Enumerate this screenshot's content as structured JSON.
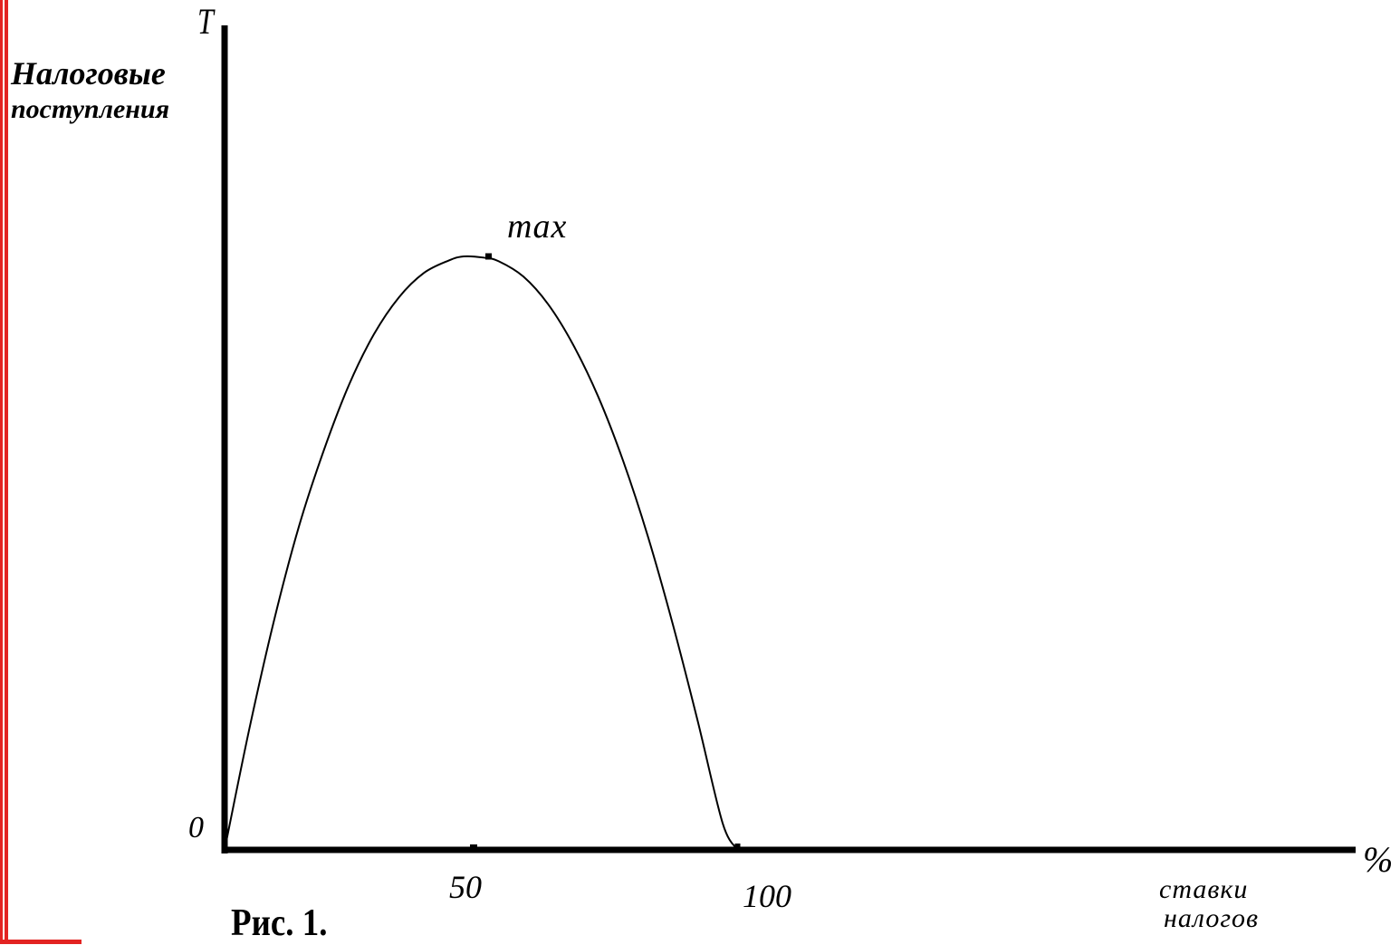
{
  "chart_data": {
    "type": "line",
    "axis_letter_y": "T",
    "ylabel": [
      "Налоговые",
      "поступления"
    ],
    "xlabel": [
      "ставки",
      "налогов"
    ],
    "x_unit": "%",
    "origin_label": "0",
    "x_tick_labels": [
      "50",
      "100"
    ],
    "xlim": [
      0,
      230
    ],
    "ylim": [
      0,
      115
    ],
    "peak_label": "max",
    "series": [
      {
        "x": [
          0,
          5,
          10,
          15,
          20,
          25,
          30,
          35,
          40,
          45,
          48,
          52,
          55,
          60,
          65,
          70,
          75,
          80,
          85,
          90,
          95,
          100,
          103
        ],
        "y": [
          0,
          20.5,
          38.9,
          54.7,
          67.5,
          78.4,
          86.9,
          93.1,
          97.2,
          99.3,
          100,
          99.8,
          99.2,
          96.6,
          91.9,
          85.1,
          76.4,
          65.6,
          52.8,
          38.0,
          21.7,
          4.5,
          0
        ]
      }
    ],
    "peak": {
      "x": 53,
      "y": 100
    }
  },
  "figure_caption": "Рис. 1.",
  "colors": {
    "border": "#e32322",
    "line": "#000000"
  }
}
